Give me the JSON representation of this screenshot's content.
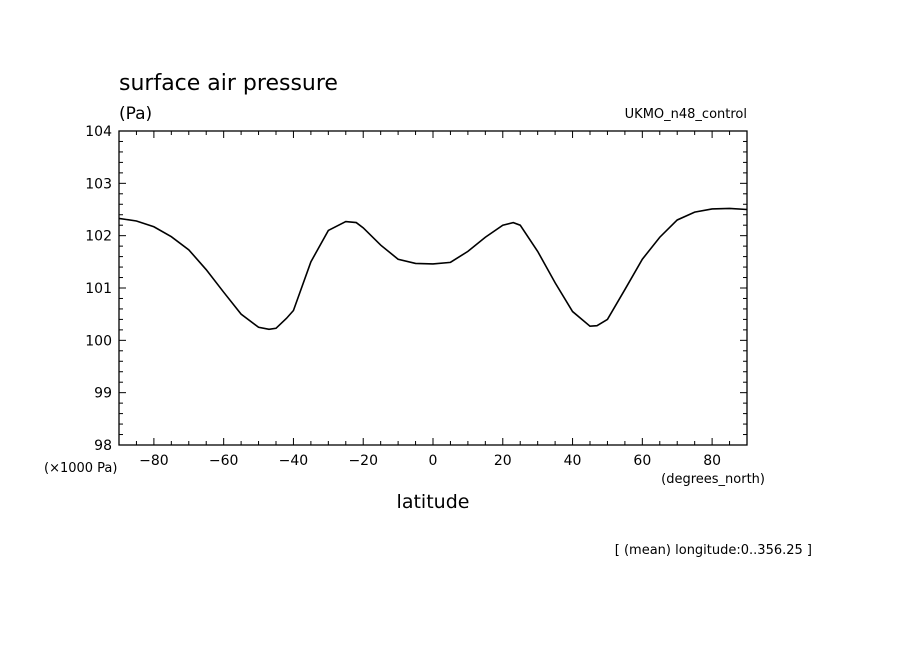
{
  "chart_data": {
    "type": "line",
    "title": "surface air pressure",
    "units": "(Pa)",
    "dataset": "UKMO_n48_control",
    "xlabel": "latitude",
    "x_units": "(degrees_north)",
    "y_scale_note": "(×1000 Pa)",
    "footnote": "[ (mean) longitude:0..356.25 ]",
    "xlim": [
      -90,
      90
    ],
    "ylim": [
      98,
      104
    ],
    "x_ticks": [
      -80,
      -60,
      -40,
      -20,
      0,
      20,
      40,
      60,
      80
    ],
    "y_ticks": [
      98,
      99,
      100,
      101,
      102,
      103,
      104
    ],
    "line_color": "#000000",
    "series": [
      {
        "x": [
          -90,
          -85,
          -80,
          -75,
          -70,
          -65,
          -60,
          -55,
          -50,
          -47,
          -45,
          -42,
          -40,
          -35,
          -30,
          -25,
          -22,
          -20,
          -15,
          -10,
          -5,
          0,
          5,
          10,
          15,
          20,
          23,
          25,
          30,
          35,
          40,
          45,
          47,
          50,
          55,
          60,
          65,
          70,
          75,
          80,
          85,
          90
        ],
        "y": [
          102.33,
          102.28,
          102.17,
          101.98,
          101.73,
          101.35,
          100.92,
          100.5,
          100.25,
          100.21,
          100.23,
          100.42,
          100.57,
          101.5,
          102.1,
          102.27,
          102.25,
          102.15,
          101.82,
          101.55,
          101.47,
          101.46,
          101.49,
          101.7,
          101.97,
          102.2,
          102.25,
          102.2,
          101.7,
          101.1,
          100.55,
          100.27,
          100.28,
          100.4,
          100.97,
          101.55,
          101.97,
          102.3,
          102.45,
          102.51,
          102.52,
          102.5
        ]
      }
    ]
  }
}
